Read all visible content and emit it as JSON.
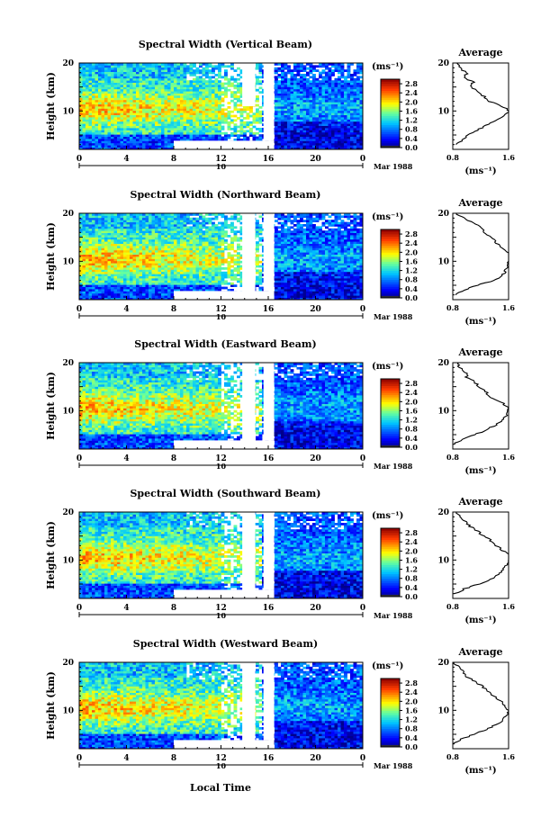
{
  "figure": {
    "xlabel": "Local Time",
    "date_label": "Mar 1988",
    "day_label": "10"
  },
  "chart_data": [
    {
      "type": "heatmap",
      "title": "Spectral Width (Vertical Beam)",
      "ylabel": "Height (km)",
      "x_ticks": [
        "0",
        "4",
        "8",
        "12",
        "16",
        "20",
        "0"
      ],
      "y_ticks": [
        "10",
        "20"
      ],
      "xlim_hours": [
        0,
        24
      ],
      "ylim_km": [
        2,
        20
      ],
      "colorbar": {
        "unit": "(ms⁻¹)",
        "ticks": [
          "0.0",
          "0.4",
          "0.8",
          "1.2",
          "1.6",
          "2.0",
          "2.4",
          "2.8"
        ],
        "range": [
          0.0,
          3.0
        ]
      },
      "missing_blocks": [
        {
          "t": [
            8,
            16.5
          ],
          "h": [
            2,
            3.8
          ]
        },
        {
          "t": [
            13.8,
            14.9
          ],
          "h": [
            11,
            20
          ]
        },
        {
          "t": [
            15.6,
            16.5
          ],
          "h": [
            3.8,
            20
          ]
        }
      ],
      "average_profile": {
        "title": "Average",
        "unit": "(ms⁻¹)",
        "x_ticks": [
          "0.8",
          "1.6"
        ],
        "y_ticks": [
          "10",
          "20"
        ],
        "xlim": [
          0.8,
          1.6
        ],
        "height_km": [
          3,
          4,
          5,
          6,
          7,
          8,
          9,
          10,
          11,
          12,
          13,
          14,
          15,
          16,
          17,
          18,
          19,
          20
        ],
        "width": [
          0.85,
          0.93,
          1.03,
          1.15,
          1.28,
          1.42,
          1.55,
          1.62,
          1.5,
          1.32,
          1.25,
          1.18,
          1.05,
          1.1,
          0.96,
          1.0,
          0.9,
          0.86
        ]
      }
    },
    {
      "type": "heatmap",
      "title": "Spectral Width (Northward Beam)",
      "ylabel": "Height (km)",
      "x_ticks": [
        "0",
        "4",
        "8",
        "12",
        "16",
        "20",
        "0"
      ],
      "y_ticks": [
        "10",
        "20"
      ],
      "xlim_hours": [
        0,
        24
      ],
      "ylim_km": [
        2,
        20
      ],
      "colorbar": {
        "unit": "(ms⁻¹)",
        "ticks": [
          "0.0",
          "0.4",
          "0.8",
          "1.2",
          "1.6",
          "2.0",
          "2.4",
          "2.8"
        ],
        "range": [
          0.0,
          3.0
        ]
      },
      "missing_blocks": [
        {
          "t": [
            8,
            16.5
          ],
          "h": [
            2,
            3.8
          ]
        },
        {
          "t": [
            13.8,
            14.9
          ],
          "h": [
            2,
            20
          ]
        },
        {
          "t": [
            15.6,
            16.5
          ],
          "h": [
            3.8,
            20
          ]
        }
      ],
      "average_profile": {
        "title": "Average",
        "unit": "(ms⁻¹)",
        "x_ticks": [
          "0.8",
          "1.6"
        ],
        "y_ticks": [
          "10",
          "20"
        ],
        "xlim": [
          0.8,
          1.6
        ],
        "height_km": [
          3,
          4,
          5,
          6,
          7,
          8,
          9,
          10,
          11,
          12,
          13,
          14,
          15,
          16,
          17,
          18,
          19,
          20
        ],
        "width": [
          0.84,
          0.95,
          1.15,
          1.38,
          1.5,
          1.56,
          1.58,
          1.6,
          1.62,
          1.58,
          1.48,
          1.42,
          1.35,
          1.26,
          1.2,
          1.1,
          0.95,
          0.85
        ]
      }
    },
    {
      "type": "heatmap",
      "title": "Spectral Width (Eastward Beam)",
      "ylabel": "Height (km)",
      "x_ticks": [
        "0",
        "4",
        "8",
        "12",
        "16",
        "20",
        "0"
      ],
      "y_ticks": [
        "10",
        "20"
      ],
      "xlim_hours": [
        0,
        24
      ],
      "ylim_km": [
        2,
        20
      ],
      "colorbar": {
        "unit": "(ms⁻¹)",
        "ticks": [
          "0.0",
          "0.4",
          "0.8",
          "1.2",
          "1.6",
          "2.0",
          "2.4",
          "2.8"
        ],
        "range": [
          0.0,
          3.0
        ]
      },
      "missing_blocks": [
        {
          "t": [
            8,
            16.5
          ],
          "h": [
            2,
            3.8
          ]
        },
        {
          "t": [
            13.8,
            14.9
          ],
          "h": [
            2,
            20
          ]
        },
        {
          "t": [
            15.6,
            16.5
          ],
          "h": [
            3.8,
            20
          ]
        }
      ],
      "average_profile": {
        "title": "Average",
        "unit": "(ms⁻¹)",
        "x_ticks": [
          "0.8",
          "1.6"
        ],
        "y_ticks": [
          "10",
          "20"
        ],
        "xlim": [
          0.8,
          1.6
        ],
        "height_km": [
          3,
          4,
          5,
          6,
          7,
          8,
          9,
          10,
          11,
          12,
          13,
          14,
          15,
          16,
          17,
          18,
          19,
          20
        ],
        "width": [
          0.82,
          0.95,
          1.12,
          1.28,
          1.42,
          1.52,
          1.56,
          1.6,
          1.58,
          1.45,
          1.32,
          1.28,
          1.18,
          1.12,
          1.0,
          0.98,
          0.9,
          0.88
        ]
      }
    },
    {
      "type": "heatmap",
      "title": "Spectral Width (Southward Beam)",
      "ylabel": "Height (km)",
      "x_ticks": [
        "0",
        "4",
        "8",
        "12",
        "16",
        "20",
        "0"
      ],
      "y_ticks": [
        "10",
        "20"
      ],
      "xlim_hours": [
        0,
        24
      ],
      "ylim_km": [
        2,
        20
      ],
      "colorbar": {
        "unit": "(ms⁻¹)",
        "ticks": [
          "0.0",
          "0.4",
          "0.8",
          "1.2",
          "1.6",
          "2.0",
          "2.4",
          "2.8"
        ],
        "range": [
          0.0,
          3.0
        ]
      },
      "missing_blocks": [
        {
          "t": [
            8,
            16.5
          ],
          "h": [
            2,
            3.8
          ]
        },
        {
          "t": [
            13.8,
            14.9
          ],
          "h": [
            2,
            20
          ]
        },
        {
          "t": [
            15.6,
            16.5
          ],
          "h": [
            3.8,
            20
          ]
        }
      ],
      "average_profile": {
        "title": "Average",
        "unit": "(ms⁻¹)",
        "x_ticks": [
          "0.8",
          "1.6"
        ],
        "y_ticks": [
          "10",
          "20"
        ],
        "xlim": [
          0.8,
          1.6
        ],
        "height_km": [
          3,
          4,
          5,
          6,
          7,
          8,
          9,
          10,
          11,
          12,
          13,
          14,
          15,
          16,
          17,
          18,
          19,
          20
        ],
        "width": [
          0.84,
          0.97,
          1.18,
          1.35,
          1.45,
          1.52,
          1.58,
          1.62,
          1.6,
          1.52,
          1.42,
          1.35,
          1.25,
          1.15,
          1.05,
          0.98,
          0.9,
          0.85
        ]
      }
    },
    {
      "type": "heatmap",
      "title": "Spectral Width (Westward Beam)",
      "ylabel": "Height (km)",
      "x_ticks": [
        "0",
        "4",
        "8",
        "12",
        "16",
        "20",
        "0"
      ],
      "y_ticks": [
        "10",
        "20"
      ],
      "xlim_hours": [
        0,
        24
      ],
      "ylim_km": [
        2,
        20
      ],
      "colorbar": {
        "unit": "(ms⁻¹)",
        "ticks": [
          "0.0",
          "0.4",
          "0.8",
          "1.2",
          "1.6",
          "2.0",
          "2.4",
          "2.8"
        ],
        "range": [
          0.0,
          3.0
        ]
      },
      "missing_blocks": [
        {
          "t": [
            8,
            16.5
          ],
          "h": [
            2,
            3.8
          ]
        },
        {
          "t": [
            13.8,
            14.9
          ],
          "h": [
            2,
            20
          ]
        },
        {
          "t": [
            15.6,
            16.5
          ],
          "h": [
            3.8,
            20
          ]
        }
      ],
      "average_profile": {
        "title": "Average",
        "unit": "(ms⁻¹)",
        "x_ticks": [
          "0.8",
          "1.6"
        ],
        "y_ticks": [
          "10",
          "20"
        ],
        "xlim": [
          0.8,
          1.6
        ],
        "height_km": [
          3,
          4,
          5,
          6,
          7,
          8,
          9,
          10,
          11,
          12,
          13,
          14,
          15,
          16,
          17,
          18,
          19,
          20
        ],
        "width": [
          0.82,
          0.92,
          1.1,
          1.28,
          1.42,
          1.52,
          1.58,
          1.6,
          1.55,
          1.48,
          1.38,
          1.3,
          1.22,
          1.12,
          1.0,
          0.95,
          0.88,
          0.82
        ]
      }
    }
  ]
}
